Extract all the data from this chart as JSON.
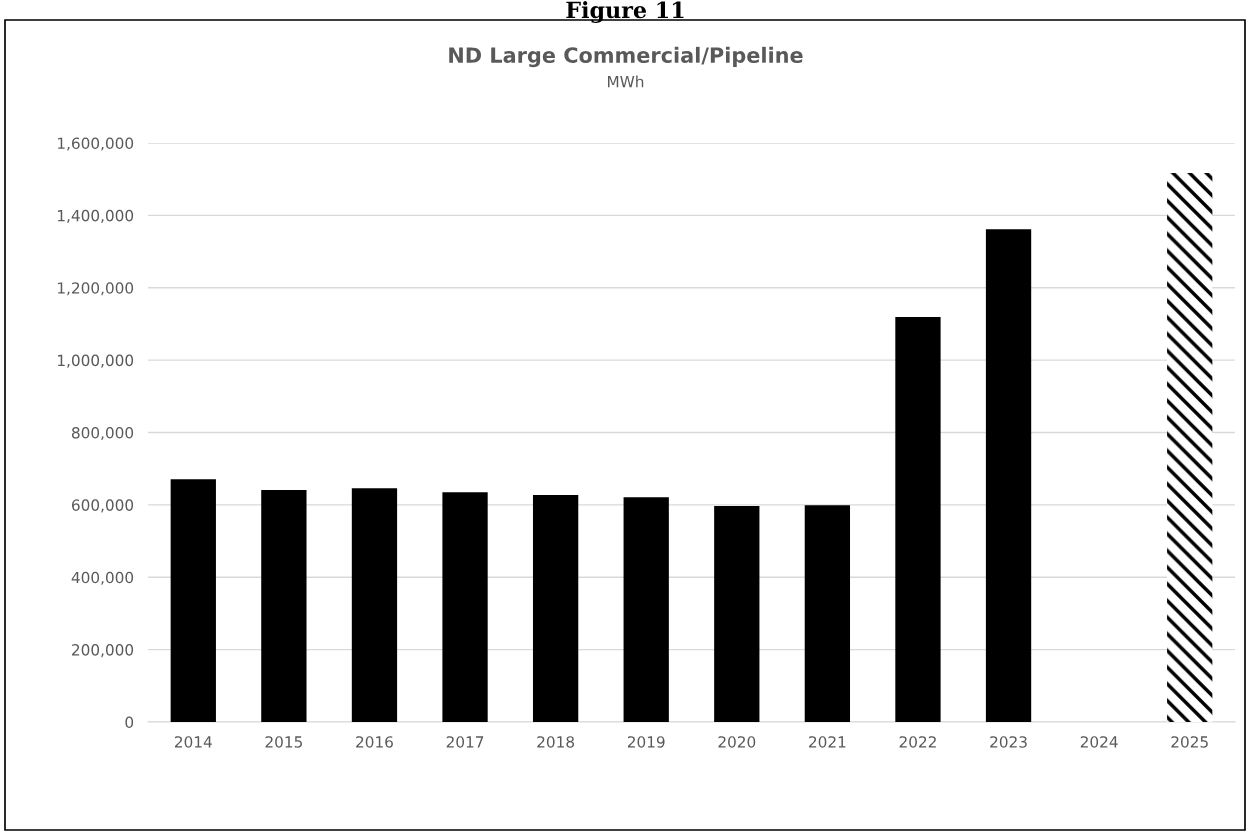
{
  "chart_data": {
    "type": "bar",
    "title": "ND Large Commercial/Pipeline",
    "subtitle": "MWh",
    "annotations": [
      "Figure 11"
    ],
    "categories": [
      "2014",
      "2015",
      "2016",
      "2017",
      "2018",
      "2019",
      "2020",
      "2021",
      "2022",
      "2023",
      "2024",
      "2025"
    ],
    "series": [
      {
        "color": "#000000",
        "values": [
          671000,
          641000,
          646000,
          635000,
          627000,
          621000,
          597000,
          599000,
          1119000,
          1362000,
          null,
          null
        ]
      },
      {
        "color": "#000000",
        "values": [
          null,
          null,
          null,
          null,
          null,
          null,
          null,
          null,
          null,
          null,
          null,
          1517000
        ]
      }
    ],
    "ylim": [
      0,
      1600000
    ],
    "yticks": [
      {
        "value": 0,
        "label": "0"
      },
      {
        "value": 200000,
        "label": "200,000"
      },
      {
        "value": 400000,
        "label": "400,000"
      },
      {
        "value": 600000,
        "label": "600,000"
      },
      {
        "value": 800000,
        "label": "800,000"
      },
      {
        "value": 1000000,
        "label": "1,000,000"
      },
      {
        "value": 1200000,
        "label": "1,200,000"
      },
      {
        "value": 1400000,
        "label": "1,400,000"
      },
      {
        "value": 1600000,
        "label": "1,600,000"
      }
    ],
    "grid": "y",
    "legend": false
  }
}
